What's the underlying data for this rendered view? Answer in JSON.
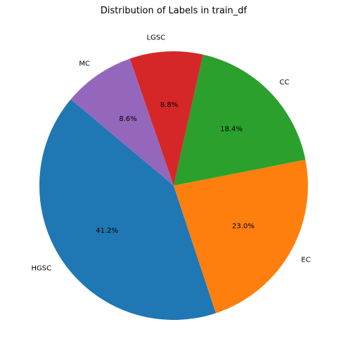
{
  "chart_data": {
    "type": "pie",
    "title": "Distribution of Labels in train_df",
    "categories": [
      "HGSC",
      "EC",
      "CC",
      "LGSC",
      "MC"
    ],
    "values": [
      41.2,
      23.0,
      18.4,
      8.8,
      8.6
    ],
    "percent_labels": [
      "41.2%",
      "23.0%",
      "18.4%",
      "8.8%",
      "8.6%"
    ],
    "colors": [
      "#1f77b4",
      "#ff7f0e",
      "#2ca02c",
      "#d62728",
      "#9467bd"
    ],
    "start_angle_deg": 140,
    "direction": "counterclockwise",
    "legend": "none"
  }
}
